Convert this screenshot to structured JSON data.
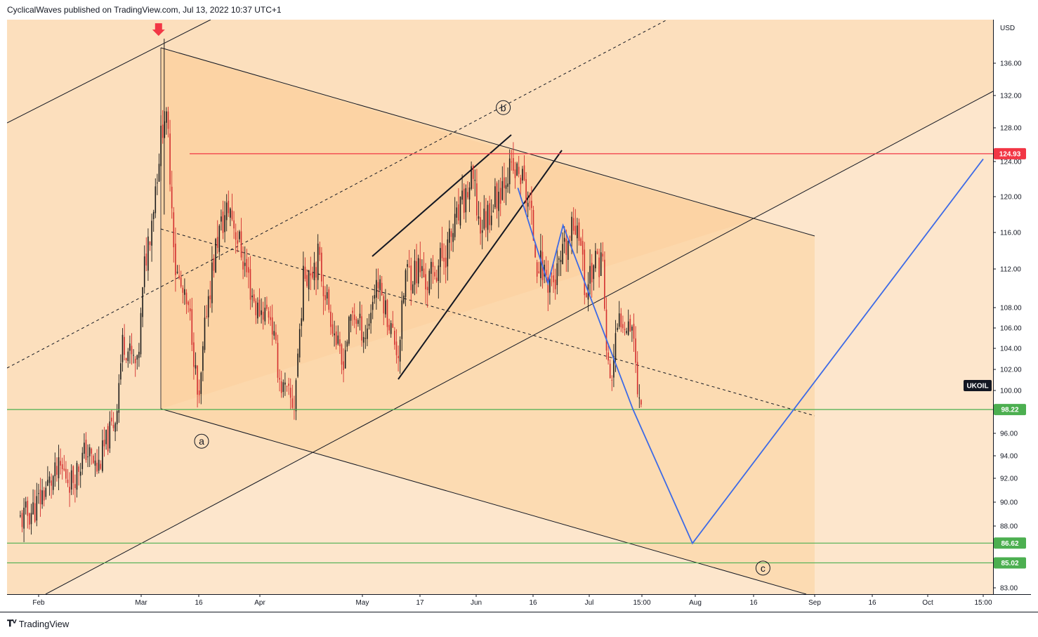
{
  "header": {
    "publisher_line": "CyclicalWaves published on TradingView.com, Jul 13, 2022 10:37 UTC+1"
  },
  "footer": {
    "logo_icon": "tradingview-logo-icon",
    "brand": "TradingView"
  },
  "colors": {
    "candle_up": "#26a69a",
    "candle_down": "#d32f2f",
    "resistance_line": "#f23645",
    "support_line": "#4caf50",
    "projection_line": "#3d6ae6",
    "channel_fill": "#fcd9ad",
    "background_fill": "#fde6cc"
  },
  "chart_data": {
    "type": "candlestick",
    "symbol_tag": "UKOIL",
    "currency": "USD",
    "y_axis": {
      "ticks": [
        {
          "value": 136,
          "label": "136.00"
        },
        {
          "value": 132,
          "label": "132.00"
        },
        {
          "value": 128,
          "label": "128.00"
        },
        {
          "value": 124,
          "label": "124.00"
        },
        {
          "value": 120,
          "label": "120.00"
        },
        {
          "value": 116,
          "label": "116.00"
        },
        {
          "value": 112,
          "label": "112.00"
        },
        {
          "value": 108,
          "label": "108.00"
        },
        {
          "value": 106,
          "label": "106.00"
        },
        {
          "value": 104,
          "label": "104.00"
        },
        {
          "value": 102,
          "label": "102.00"
        },
        {
          "value": 100,
          "label": "100.00"
        },
        {
          "value": 96,
          "label": "96.00"
        },
        {
          "value": 94,
          "label": "94.00"
        },
        {
          "value": 92,
          "label": "92.00"
        },
        {
          "value": 90,
          "label": "90.00"
        },
        {
          "value": 88,
          "label": "88.00"
        },
        {
          "value": 83,
          "label": "83.00"
        }
      ]
    },
    "x_axis": {
      "ticks": [
        {
          "date": "2022-02-01",
          "label": "Feb"
        },
        {
          "date": "2022-03-01",
          "label": "Mar"
        },
        {
          "date": "2022-03-16",
          "label": "16"
        },
        {
          "date": "2022-04-01",
          "label": "Apr"
        },
        {
          "date": "2022-05-01",
          "label": "May"
        },
        {
          "date": "2022-05-17",
          "label": "17"
        },
        {
          "date": "2022-06-01",
          "label": "Jun"
        },
        {
          "date": "2022-06-16",
          "label": "16"
        },
        {
          "date": "2022-07-01",
          "label": "Jul"
        },
        {
          "date": "2022-07-13",
          "label": "15:00"
        },
        {
          "date": "2022-08-01",
          "label": "Aug"
        },
        {
          "date": "2022-08-16",
          "label": "16"
        },
        {
          "date": "2022-09-01",
          "label": "Sep"
        },
        {
          "date": "2022-09-16",
          "label": "16"
        },
        {
          "date": "2022-10-01",
          "label": "Oct"
        },
        {
          "date": "2022-10-13",
          "label": "15:00"
        }
      ]
    },
    "horizontal_levels": [
      {
        "value": 124.93,
        "label": "124.93",
        "color": "#f23645"
      },
      {
        "value": 98.22,
        "label": "98.22",
        "color": "#4caf50"
      },
      {
        "value": 86.62,
        "label": "86.62",
        "color": "#4caf50"
      },
      {
        "value": 85.02,
        "label": "85.02",
        "color": "#4caf50"
      }
    ],
    "last_price": 99.8,
    "wave_labels": [
      {
        "label": "a",
        "date": "2022-03-16",
        "value": 95.3
      },
      {
        "label": "b",
        "date": "2022-06-10",
        "value": 130.5
      },
      {
        "label": "c",
        "date": "2022-08-13",
        "value": 84.6
      }
    ],
    "projection_path": [
      {
        "date": "2022-06-12",
        "value": 121.0
      },
      {
        "date": "2022-06-20",
        "value": 110.5
      },
      {
        "date": "2022-06-24",
        "value": 116.8
      },
      {
        "date": "2022-07-11",
        "value": 98.2
      },
      {
        "date": "2022-07-31",
        "value": 86.6
      },
      {
        "date": "2022-10-13",
        "value": 124.3
      }
    ],
    "peak_marker": {
      "date": "2022-03-07",
      "value": 139.1
    },
    "price_path_anchors": [
      {
        "date": "2022-01-27",
        "value": 88.5
      },
      {
        "date": "2022-01-31",
        "value": 89.5
      },
      {
        "date": "2022-02-03",
        "value": 91.2
      },
      {
        "date": "2022-02-07",
        "value": 92.8
      },
      {
        "date": "2022-02-10",
        "value": 91.8
      },
      {
        "date": "2022-02-14",
        "value": 94.5
      },
      {
        "date": "2022-02-17",
        "value": 92.8
      },
      {
        "date": "2022-02-22",
        "value": 97.5
      },
      {
        "date": "2022-02-24",
        "value": 104.8
      },
      {
        "date": "2022-02-28",
        "value": 102.0
      },
      {
        "date": "2022-03-02",
        "value": 112.8
      },
      {
        "date": "2022-03-04",
        "value": 118.5
      },
      {
        "date": "2022-03-07",
        "value": 130.0
      },
      {
        "date": "2022-03-08",
        "value": 127.0
      },
      {
        "date": "2022-03-10",
        "value": 111.8
      },
      {
        "date": "2022-03-14",
        "value": 106.5
      },
      {
        "date": "2022-03-16",
        "value": 98.0
      },
      {
        "date": "2022-03-18",
        "value": 107.9
      },
      {
        "date": "2022-03-21",
        "value": 115.6
      },
      {
        "date": "2022-03-24",
        "value": 119.0
      },
      {
        "date": "2022-03-28",
        "value": 112.5
      },
      {
        "date": "2022-03-31",
        "value": 107.9
      },
      {
        "date": "2022-04-04",
        "value": 107.5
      },
      {
        "date": "2022-04-07",
        "value": 100.6
      },
      {
        "date": "2022-04-11",
        "value": 98.5
      },
      {
        "date": "2022-04-14",
        "value": 111.7
      },
      {
        "date": "2022-04-18",
        "value": 113.2
      },
      {
        "date": "2022-04-21",
        "value": 108.3
      },
      {
        "date": "2022-04-25",
        "value": 102.3
      },
      {
        "date": "2022-04-28",
        "value": 107.6
      },
      {
        "date": "2022-05-02",
        "value": 105.2
      },
      {
        "date": "2022-05-05",
        "value": 111.0
      },
      {
        "date": "2022-05-09",
        "value": 105.9
      },
      {
        "date": "2022-05-11",
        "value": 103.5
      },
      {
        "date": "2022-05-13",
        "value": 111.5
      },
      {
        "date": "2022-05-17",
        "value": 112.0
      },
      {
        "date": "2022-05-19",
        "value": 110.5
      },
      {
        "date": "2022-05-24",
        "value": 114.0
      },
      {
        "date": "2022-05-27",
        "value": 117.4
      },
      {
        "date": "2022-05-31",
        "value": 122.0
      },
      {
        "date": "2022-06-02",
        "value": 116.5
      },
      {
        "date": "2022-06-07",
        "value": 120.6
      },
      {
        "date": "2022-06-09",
        "value": 123.0
      },
      {
        "date": "2022-06-13",
        "value": 122.3
      },
      {
        "date": "2022-06-15",
        "value": 119.0
      },
      {
        "date": "2022-06-17",
        "value": 113.1
      },
      {
        "date": "2022-06-20",
        "value": 111.0
      },
      {
        "date": "2022-06-22",
        "value": 110.8
      },
      {
        "date": "2022-06-24",
        "value": 113.1
      },
      {
        "date": "2022-06-28",
        "value": 117.9
      },
      {
        "date": "2022-06-30",
        "value": 109.0
      },
      {
        "date": "2022-07-01",
        "value": 111.6
      },
      {
        "date": "2022-07-04",
        "value": 113.5
      },
      {
        "date": "2022-07-05",
        "value": 102.8
      },
      {
        "date": "2022-07-06",
        "value": 100.7
      },
      {
        "date": "2022-07-07",
        "value": 104.6
      },
      {
        "date": "2022-07-08",
        "value": 107.0
      },
      {
        "date": "2022-07-11",
        "value": 106.5
      },
      {
        "date": "2022-07-12",
        "value": 99.5
      },
      {
        "date": "2022-07-13",
        "value": 99.8
      }
    ]
  }
}
